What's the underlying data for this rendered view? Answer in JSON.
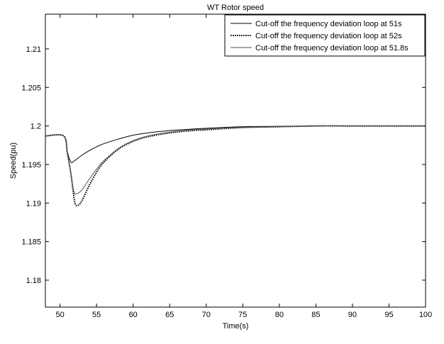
{
  "chart_data": {
    "type": "line",
    "title": "WT Rotor speed",
    "xlabel": "Time(s)",
    "ylabel": "Speed(pu)",
    "xlim": [
      48,
      100
    ],
    "ylim": [
      1.1765,
      1.2145
    ],
    "xticks": [
      50,
      55,
      60,
      65,
      70,
      75,
      80,
      85,
      90,
      95,
      100
    ],
    "xtick_labels": [
      "50",
      "55",
      "60",
      "65",
      "70",
      "75",
      "80",
      "85",
      "90",
      "95",
      "100"
    ],
    "yticks": [
      1.18,
      1.185,
      1.19,
      1.195,
      1.2,
      1.205,
      1.21
    ],
    "ytick_labels": [
      "1.18",
      "1.185",
      "1.19",
      "1.195",
      "1.2",
      "1.205",
      "1.21"
    ],
    "grid": false,
    "legend_position": "top-right",
    "series": [
      {
        "name": "Cut-off the frequency deviation loop at 51s",
        "color": "#000000",
        "style": "solid",
        "x": [
          48,
          50.5,
          51,
          51.5,
          52,
          53,
          54,
          55,
          56,
          58,
          60,
          62,
          65,
          68,
          70,
          75,
          80,
          85,
          90,
          95,
          100
        ],
        "y": [
          1.1987,
          1.1987,
          1.1966,
          1.1953,
          1.1955,
          1.1962,
          1.1968,
          1.1973,
          1.1977,
          1.1983,
          1.1988,
          1.1991,
          1.1994,
          1.1996,
          1.1997,
          1.1999,
          1.19995,
          1.2,
          1.2,
          1.2,
          1.2
        ]
      },
      {
        "name": "Cut-off the frequency deviation loop at 52s",
        "color": "#000000",
        "style": "dotted",
        "x": [
          48,
          50.5,
          51,
          51.5,
          52,
          52.4,
          53,
          54,
          55,
          56,
          58,
          60,
          62,
          65,
          68,
          70,
          75,
          80,
          85,
          90,
          95,
          100
        ],
        "y": [
          1.1987,
          1.1987,
          1.1965,
          1.1937,
          1.1902,
          1.1897,
          1.1903,
          1.1923,
          1.194,
          1.1953,
          1.197,
          1.198,
          1.1986,
          1.1991,
          1.1994,
          1.1995,
          1.1998,
          1.1999,
          1.2,
          1.2,
          1.2,
          1.2
        ]
      },
      {
        "name": "Cut-off the frequency deviation loop at 51.8s",
        "color": "#555555",
        "style": "solid",
        "x": [
          48,
          50.5,
          51,
          51.5,
          51.9,
          52.2,
          53,
          54,
          55,
          56,
          58,
          60,
          62,
          65,
          68,
          70,
          75,
          80,
          85,
          90,
          95,
          100
        ],
        "y": [
          1.1987,
          1.1987,
          1.1965,
          1.1938,
          1.1915,
          1.1912,
          1.1917,
          1.1931,
          1.1944,
          1.1955,
          1.1971,
          1.1981,
          1.1987,
          1.1992,
          1.1995,
          1.1996,
          1.1998,
          1.1999,
          1.2,
          1.2,
          1.2,
          1.2
        ]
      }
    ]
  }
}
